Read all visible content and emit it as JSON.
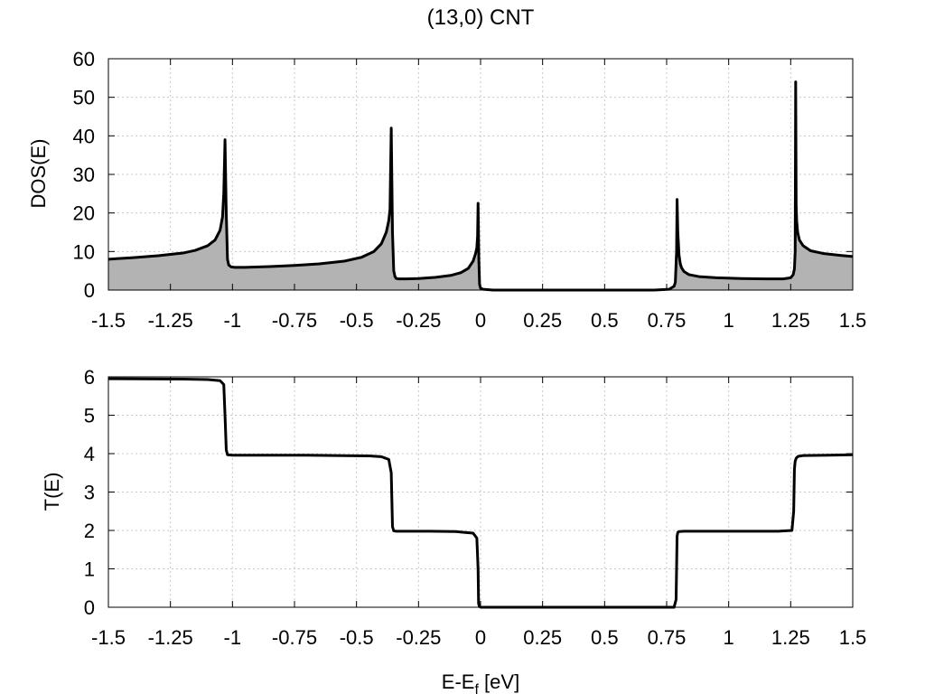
{
  "figure": {
    "title": "(13,0) CNT",
    "xlabel_main": "E-E",
    "xlabel_sub": "f",
    "xlabel_unit": " [eV]"
  },
  "chart_data": [
    {
      "type": "area",
      "ylabel": "DOS(E)",
      "xlim": [
        -1.5,
        1.5
      ],
      "ylim": [
        0,
        60
      ],
      "x_ticks": [
        "-1.5",
        "-1.25",
        "-1",
        "-0.75",
        "-0.5",
        "-0.25",
        "0",
        "0.25",
        "0.5",
        "0.75",
        "1",
        "1.25",
        "1.5"
      ],
      "x_tick_values": [
        -1.5,
        -1.25,
        -1,
        -0.75,
        -0.5,
        -0.25,
        0,
        0.25,
        0.5,
        0.75,
        1,
        1.25,
        1.5
      ],
      "y_ticks": [
        0,
        10,
        20,
        30,
        40,
        50,
        60
      ],
      "grid": true,
      "filled": true,
      "fill_color": "#b3b3b3",
      "line_color": "#000000",
      "series": [
        {
          "x": [
            -1.5,
            -1.4,
            -1.3,
            -1.2,
            -1.15,
            -1.1,
            -1.07,
            -1.05,
            -1.04,
            -1.035,
            -1.03,
            -1.025,
            -1.02,
            -1.015,
            -1.005,
            -0.99,
            -0.95,
            -0.85,
            -0.75,
            -0.65,
            -0.55,
            -0.48,
            -0.43,
            -0.4,
            -0.38,
            -0.37,
            -0.365,
            -0.36,
            -0.355,
            -0.35,
            -0.345,
            -0.34,
            -0.33,
            -0.3,
            -0.25,
            -0.18,
            -0.12,
            -0.08,
            -0.05,
            -0.03,
            -0.02,
            -0.015,
            -0.012,
            -0.01,
            -0.007,
            -0.004,
            0.0,
            0.01,
            0.05,
            0.25,
            0.5,
            0.7,
            0.76,
            0.78,
            0.785,
            0.79,
            0.792,
            0.795,
            0.8,
            0.805,
            0.81,
            0.82,
            0.84,
            0.88,
            0.95,
            1.05,
            1.15,
            1.22,
            1.25,
            1.26,
            1.265,
            1.268,
            1.27,
            1.272,
            1.274,
            1.278,
            1.285,
            1.3,
            1.33,
            1.38,
            1.45,
            1.5
          ],
          "y": [
            8.0,
            8.4,
            8.9,
            9.6,
            10.3,
            11.5,
            13.0,
            15.5,
            19.0,
            25.0,
            39.0,
            20.0,
            8.0,
            6.5,
            6.0,
            5.9,
            5.9,
            6.1,
            6.4,
            6.8,
            7.5,
            8.5,
            10.0,
            12.0,
            15.0,
            18.0,
            21.0,
            42.0,
            15.0,
            5.0,
            3.5,
            3.0,
            2.9,
            2.9,
            3.0,
            3.3,
            3.8,
            4.5,
            5.6,
            7.5,
            9.5,
            11.0,
            14.0,
            22.5,
            8.0,
            1.5,
            0.5,
            0.2,
            0.0,
            0.0,
            0.0,
            0.0,
            0.2,
            1.0,
            2.0,
            10.0,
            23.5,
            15.0,
            9.0,
            6.8,
            5.8,
            4.8,
            4.0,
            3.5,
            3.2,
            3.0,
            2.9,
            2.9,
            3.2,
            4.0,
            5.5,
            10.0,
            54.0,
            22.0,
            18.0,
            15.0,
            13.0,
            11.5,
            10.2,
            9.5,
            9.0,
            8.7
          ]
        }
      ]
    },
    {
      "type": "line",
      "ylabel": "T(E)",
      "xlim": [
        -1.5,
        1.5
      ],
      "ylim": [
        0,
        6
      ],
      "x_ticks": [
        "-1.5",
        "-1.25",
        "-1",
        "-0.75",
        "-0.5",
        "-0.25",
        "0",
        "0.25",
        "0.5",
        "0.75",
        "1",
        "1.25",
        "1.5"
      ],
      "x_tick_values": [
        -1.5,
        -1.25,
        -1,
        -0.75,
        -0.5,
        -0.25,
        0,
        0.25,
        0.5,
        0.75,
        1,
        1.25,
        1.5
      ],
      "y_ticks": [
        0,
        1,
        2,
        3,
        4,
        5,
        6
      ],
      "grid": true,
      "line_color": "#000000",
      "series": [
        {
          "x": [
            -1.5,
            -1.2,
            -1.1,
            -1.05,
            -1.035,
            -1.03,
            -1.025,
            -1.02,
            -1.0,
            -0.7,
            -0.45,
            -0.4,
            -0.37,
            -0.36,
            -0.355,
            -0.35,
            -0.34,
            -0.2,
            -0.1,
            -0.03,
            -0.015,
            -0.01,
            -0.008,
            -0.005,
            0.0,
            0.4,
            0.78,
            0.788,
            0.79,
            0.792,
            0.795,
            0.8,
            0.82,
            1.0,
            1.2,
            1.255,
            1.262,
            1.265,
            1.268,
            1.272,
            1.28,
            1.3,
            1.4,
            1.5
          ],
          "y": [
            5.95,
            5.94,
            5.93,
            5.9,
            5.8,
            5.0,
            4.1,
            3.97,
            3.96,
            3.96,
            3.94,
            3.92,
            3.85,
            3.5,
            2.1,
            1.99,
            1.98,
            1.98,
            1.97,
            1.93,
            1.8,
            1.0,
            0.1,
            0.02,
            0.0,
            0.0,
            0.0,
            0.2,
            1.0,
            1.85,
            1.95,
            1.97,
            1.98,
            1.98,
            1.98,
            2.0,
            2.5,
            3.6,
            3.8,
            3.88,
            3.93,
            3.95,
            3.96,
            3.97
          ]
        }
      ]
    }
  ]
}
